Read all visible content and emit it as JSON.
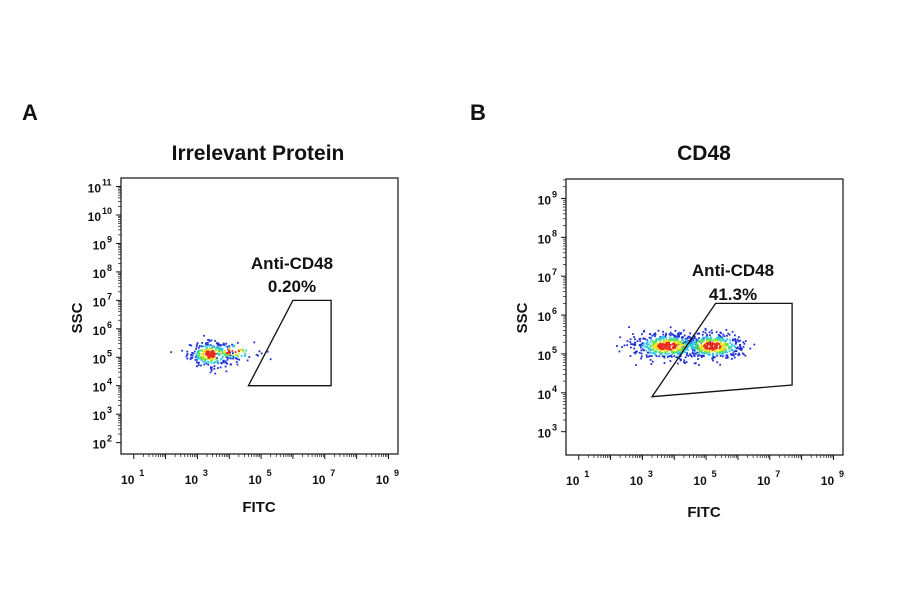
{
  "panels": [
    {
      "letter": "A",
      "chart_data": {
        "type": "scatter",
        "title": "Irrelevant Protein",
        "xlabel": "FITC",
        "ylabel": "SSC",
        "x_scale": "log",
        "y_scale": "log",
        "xlim_log10": [
          0.6,
          9.3
        ],
        "ylim_log10": [
          1.6,
          11.3
        ],
        "x_ticks": [
          {
            "base": "10",
            "exp": "1",
            "log": 1
          },
          {
            "base": "10",
            "exp": "3",
            "log": 3
          },
          {
            "base": "10",
            "exp": "5",
            "log": 5
          },
          {
            "base": "10",
            "exp": "7",
            "log": 7
          },
          {
            "base": "10",
            "exp": "9",
            "log": 9
          }
        ],
        "y_ticks": [
          {
            "base": "10",
            "exp": "2",
            "log": 2
          },
          {
            "base": "10",
            "exp": "3",
            "log": 3
          },
          {
            "base": "10",
            "exp": "4",
            "log": 4
          },
          {
            "base": "10",
            "exp": "5",
            "log": 5
          },
          {
            "base": "10",
            "exp": "6",
            "log": 6
          },
          {
            "base": "10",
            "exp": "7",
            "log": 7
          },
          {
            "base": "10",
            "exp": "8",
            "log": 8
          },
          {
            "base": "10",
            "exp": "9",
            "log": 9
          },
          {
            "base": "10",
            "exp": "10",
            "log": 10
          },
          {
            "base": "10",
            "exp": "11",
            "log": 11
          }
        ],
        "gate": {
          "label": "Anti-CD48",
          "percent": "0.20%",
          "polygon_log10": [
            [
              4.6,
              4.0
            ],
            [
              6.0,
              7.0
            ],
            [
              7.2,
              7.0
            ],
            [
              7.2,
              4.0
            ]
          ]
        },
        "populations": [
          {
            "center_log10": [
              3.4,
              5.1
            ],
            "spread_log10": [
              0.35,
              0.22
            ],
            "count": 260
          },
          {
            "center_log10": [
              4.1,
              5.2
            ],
            "spread_log10": [
              0.4,
              0.15
            ],
            "count": 90
          }
        ]
      }
    },
    {
      "letter": "B",
      "chart_data": {
        "type": "scatter",
        "title": "CD48",
        "xlabel": "FITC",
        "ylabel": "SSC",
        "x_scale": "log",
        "y_scale": "log",
        "xlim_log10": [
          0.6,
          9.3
        ],
        "ylim_log10": [
          2.4,
          9.5
        ],
        "x_ticks": [
          {
            "base": "10",
            "exp": "1",
            "log": 1
          },
          {
            "base": "10",
            "exp": "3",
            "log": 3
          },
          {
            "base": "10",
            "exp": "5",
            "log": 5
          },
          {
            "base": "10",
            "exp": "7",
            "log": 7
          },
          {
            "base": "10",
            "exp": "9",
            "log": 9
          }
        ],
        "y_ticks": [
          {
            "base": "10",
            "exp": "3",
            "log": 3
          },
          {
            "base": "10",
            "exp": "4",
            "log": 4
          },
          {
            "base": "10",
            "exp": "5",
            "log": 5
          },
          {
            "base": "10",
            "exp": "6",
            "log": 6
          },
          {
            "base": "10",
            "exp": "7",
            "log": 7
          },
          {
            "base": "10",
            "exp": "8",
            "log": 8
          },
          {
            "base": "10",
            "exp": "9",
            "log": 9
          }
        ],
        "gate": {
          "label": "Anti-CD48",
          "percent": "41.3%",
          "polygon_log10": [
            [
              3.3,
              3.9
            ],
            [
              5.3,
              6.3
            ],
            [
              7.7,
              6.3
            ],
            [
              7.7,
              4.2
            ]
          ]
        },
        "populations": [
          {
            "center_log10": [
              3.8,
              5.2
            ],
            "spread_log10": [
              0.55,
              0.17
            ],
            "count": 500
          },
          {
            "center_log10": [
              5.2,
              5.2
            ],
            "spread_log10": [
              0.5,
              0.17
            ],
            "count": 420
          }
        ]
      }
    }
  ],
  "colors": {
    "density_low": "#1f2fd6",
    "density_mid": "#2ec8e6",
    "density_midhigh": "#5be34a",
    "density_high": "#f2e21a",
    "density_peak": "#e8281e"
  }
}
